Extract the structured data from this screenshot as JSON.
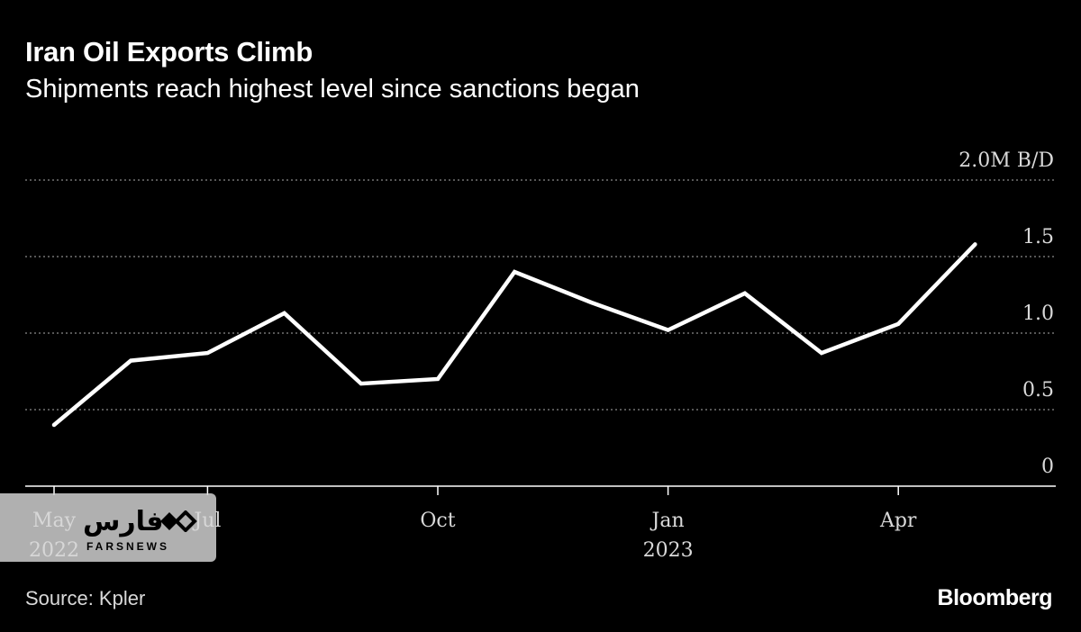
{
  "chart_data": {
    "type": "line",
    "title": "Iran Oil Exports Climb",
    "subtitle": "Shipments reach highest level since sanctions began",
    "unit_label": "2.0M B/D",
    "y_ticks": [
      "0",
      "0.5",
      "1.0",
      "1.5",
      "2.0M B/D"
    ],
    "y_tick_values": [
      0,
      0.5,
      1.0,
      1.5,
      2.0
    ],
    "ylim": [
      0,
      2.0
    ],
    "x_ticks": [
      {
        "label": "May",
        "sub": "2022",
        "index": 0
      },
      {
        "label": "Jul",
        "sub": "",
        "index": 2
      },
      {
        "label": "Oct",
        "sub": "",
        "index": 5
      },
      {
        "label": "Jan",
        "sub": "2023",
        "index": 8
      },
      {
        "label": "Apr",
        "sub": "",
        "index": 11
      }
    ],
    "series": [
      {
        "name": "Iran oil exports",
        "x": [
          "May 2022",
          "Jun 2022",
          "Jul 2022",
          "Aug 2022",
          "Sep 2022",
          "Oct 2022",
          "Nov 2022",
          "Dec 2022",
          "Jan 2023",
          "Feb 2023",
          "Mar 2023",
          "Apr 2023",
          "May 2023"
        ],
        "values": [
          0.4,
          0.82,
          0.87,
          1.13,
          0.67,
          0.7,
          1.4,
          1.2,
          1.02,
          1.26,
          0.87,
          1.06,
          1.58
        ],
        "color": "#ffffff"
      }
    ],
    "grid": true,
    "source": "Source: Kpler",
    "brand": "Bloomberg"
  },
  "watermark": {
    "persian": "فارس",
    "latin": "FARSNEWS"
  },
  "colors": {
    "background": "#000000",
    "line": "#ffffff",
    "grid": "#8a8a8a",
    "tick_text": "#d9d9d9"
  }
}
